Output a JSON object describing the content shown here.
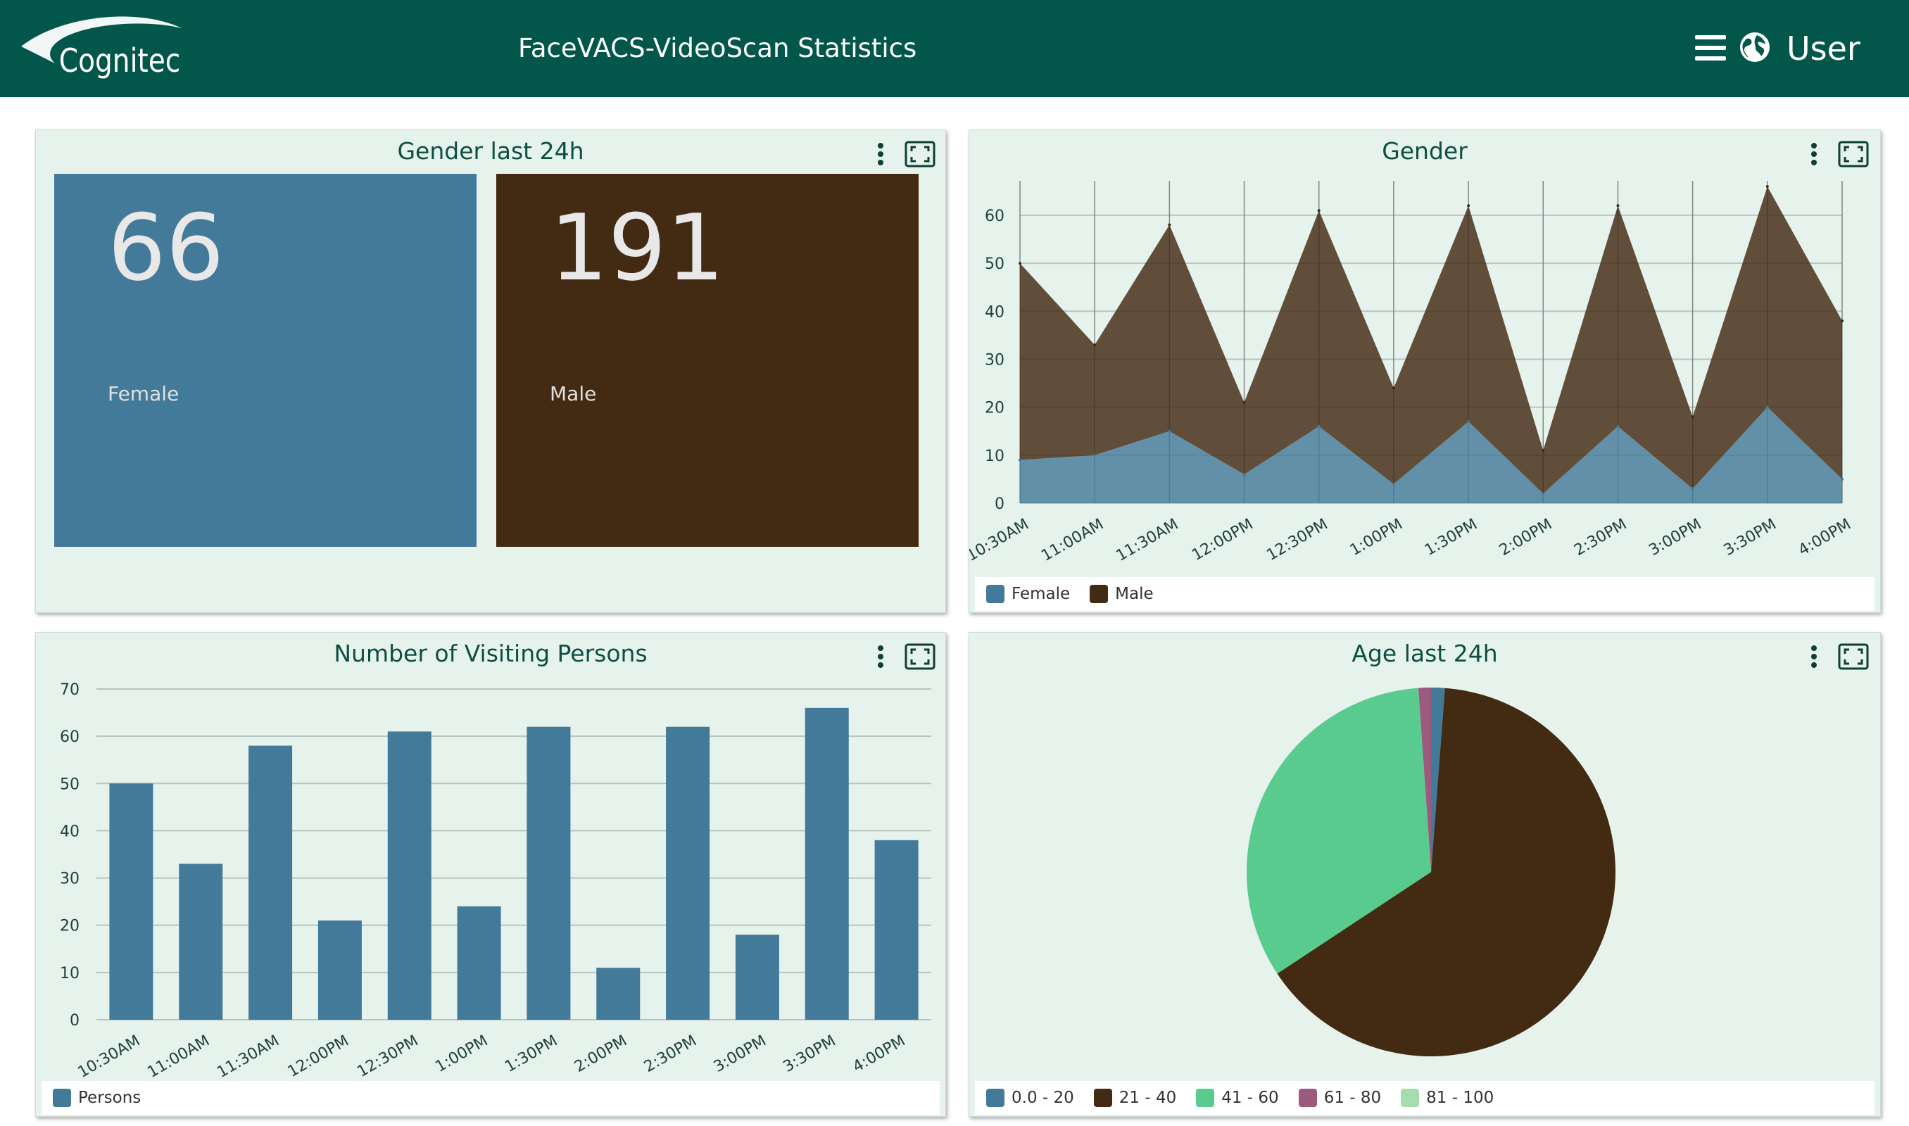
{
  "app": {
    "logo_text": "Cognitec",
    "title": "FaceVACS-VideoScan Statistics",
    "user": "User"
  },
  "colors": {
    "header": "#03574a",
    "panel": "#e6f2ec",
    "female": "#437a99",
    "male": "#432a12",
    "age_0_20": "#437a99",
    "age_21_40": "#432a12",
    "age_41_60": "#5acb8f",
    "age_61_80": "#9b5a7e",
    "age_81_100": "#a6ddae"
  },
  "icons": {
    "menu": "hamburger-icon",
    "globe": "globe-icon",
    "panel_menu": "kebab-icon",
    "panel_expand": "fullscreen-icon"
  },
  "panels": {
    "gender24": {
      "title": "Gender last 24h",
      "tiles": [
        {
          "value": "66",
          "label": "Female"
        },
        {
          "value": "191",
          "label": "Male"
        }
      ]
    },
    "gender": {
      "title": "Gender",
      "legend": [
        "Female",
        "Male"
      ]
    },
    "visiting": {
      "title": "Number of Visiting Persons",
      "legend": [
        "Persons"
      ]
    },
    "age": {
      "title": "Age last 24h",
      "legend": [
        "0.0 - 20",
        "21 - 40",
        "41 - 60",
        "61 - 80",
        "81 - 100"
      ]
    }
  },
  "chart_data": [
    {
      "type": "area",
      "title": "Gender",
      "x": [
        "10:30AM",
        "11:00AM",
        "11:30AM",
        "12:00PM",
        "12:30PM",
        "1:00PM",
        "1:30PM",
        "2:00PM",
        "2:30PM",
        "3:00PM",
        "3:30PM",
        "4:00PM"
      ],
      "yticks": [
        0,
        10,
        20,
        30,
        40,
        50,
        60
      ],
      "ylim": [
        0,
        66
      ],
      "stacked": true,
      "series": [
        {
          "name": "Female",
          "values": [
            9,
            10,
            15,
            6,
            16,
            4,
            17,
            2,
            16,
            3,
            20,
            5
          ]
        },
        {
          "name": "Male",
          "values": [
            41,
            23,
            43,
            15,
            45,
            20,
            45,
            9,
            46,
            15,
            46,
            33
          ]
        }
      ],
      "grid": true,
      "legend": "bottom-left"
    },
    {
      "type": "bar",
      "title": "Number of Visiting Persons",
      "categories": [
        "10:30AM",
        "11:00AM",
        "11:30AM",
        "12:00PM",
        "12:30PM",
        "1:00PM",
        "1:30PM",
        "2:00PM",
        "2:30PM",
        "3:00PM",
        "3:30PM",
        "4:00PM"
      ],
      "yticks": [
        0,
        10,
        20,
        30,
        40,
        50,
        60,
        70
      ],
      "ylim": [
        0,
        70
      ],
      "series": [
        {
          "name": "Persons",
          "values": [
            50,
            33,
            58,
            21,
            61,
            24,
            62,
            11,
            62,
            18,
            66,
            38
          ]
        }
      ],
      "grid": true,
      "legend": "bottom-left"
    },
    {
      "type": "pie",
      "title": "Age last 24h",
      "labels": [
        "0.0 - 20",
        "21 - 40",
        "41 - 60",
        "61 - 80",
        "81 - 100"
      ],
      "values": [
        1.2,
        64.5,
        33.2,
        1.1,
        0
      ],
      "legend": "bottom-left"
    }
  ]
}
